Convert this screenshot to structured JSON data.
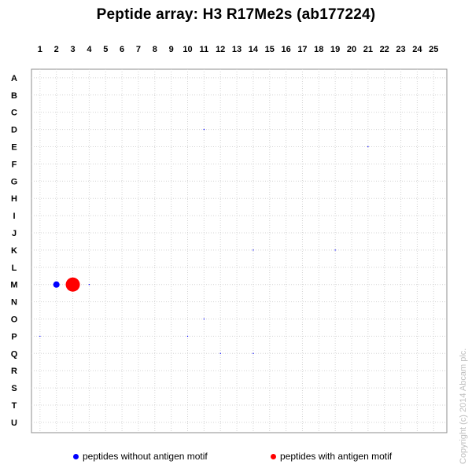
{
  "title": "Peptide array:  H3 R17Me2s (ab177224)",
  "copyright": "Copyright (c) 2014 Abcam plc.",
  "chart_data": {
    "type": "scatter",
    "title": "Peptide array:  H3 R17Me2s (ab177224)",
    "columns": [
      "1",
      "2",
      "3",
      "4",
      "5",
      "6",
      "7",
      "8",
      "9",
      "10",
      "11",
      "12",
      "13",
      "14",
      "15",
      "16",
      "17",
      "18",
      "19",
      "20",
      "21",
      "22",
      "23",
      "24",
      "25"
    ],
    "rows": [
      "A",
      "B",
      "C",
      "D",
      "E",
      "F",
      "G",
      "H",
      "I",
      "J",
      "K",
      "L",
      "M",
      "N",
      "O",
      "P",
      "Q",
      "R",
      "S",
      "T",
      "U"
    ],
    "grid": true,
    "legend_placement": "bottom",
    "series": [
      {
        "name": "peptides without antigen motif",
        "color": "#0000ff",
        "points": [
          {
            "col": 2,
            "row": "M",
            "value": 0.45
          },
          {
            "col": 4,
            "row": "M",
            "value": 0.04
          },
          {
            "col": 11,
            "row": "D",
            "value": 0.03
          },
          {
            "col": 21,
            "row": "E",
            "value": 0.04
          },
          {
            "col": 14,
            "row": "K",
            "value": 0.04
          },
          {
            "col": 19,
            "row": "K",
            "value": 0.05
          },
          {
            "col": 11,
            "row": "O",
            "value": 0.02
          },
          {
            "col": 1,
            "row": "P",
            "value": 0.05
          },
          {
            "col": 10,
            "row": "P",
            "value": 0.03
          },
          {
            "col": 12,
            "row": "Q",
            "value": 0.02
          },
          {
            "col": 14,
            "row": "Q",
            "value": 0.04
          }
        ]
      },
      {
        "name": "peptides with antigen motif",
        "color": "#ff0000",
        "points": [
          {
            "col": 3,
            "row": "M",
            "value": 1.0
          }
        ]
      }
    ]
  }
}
